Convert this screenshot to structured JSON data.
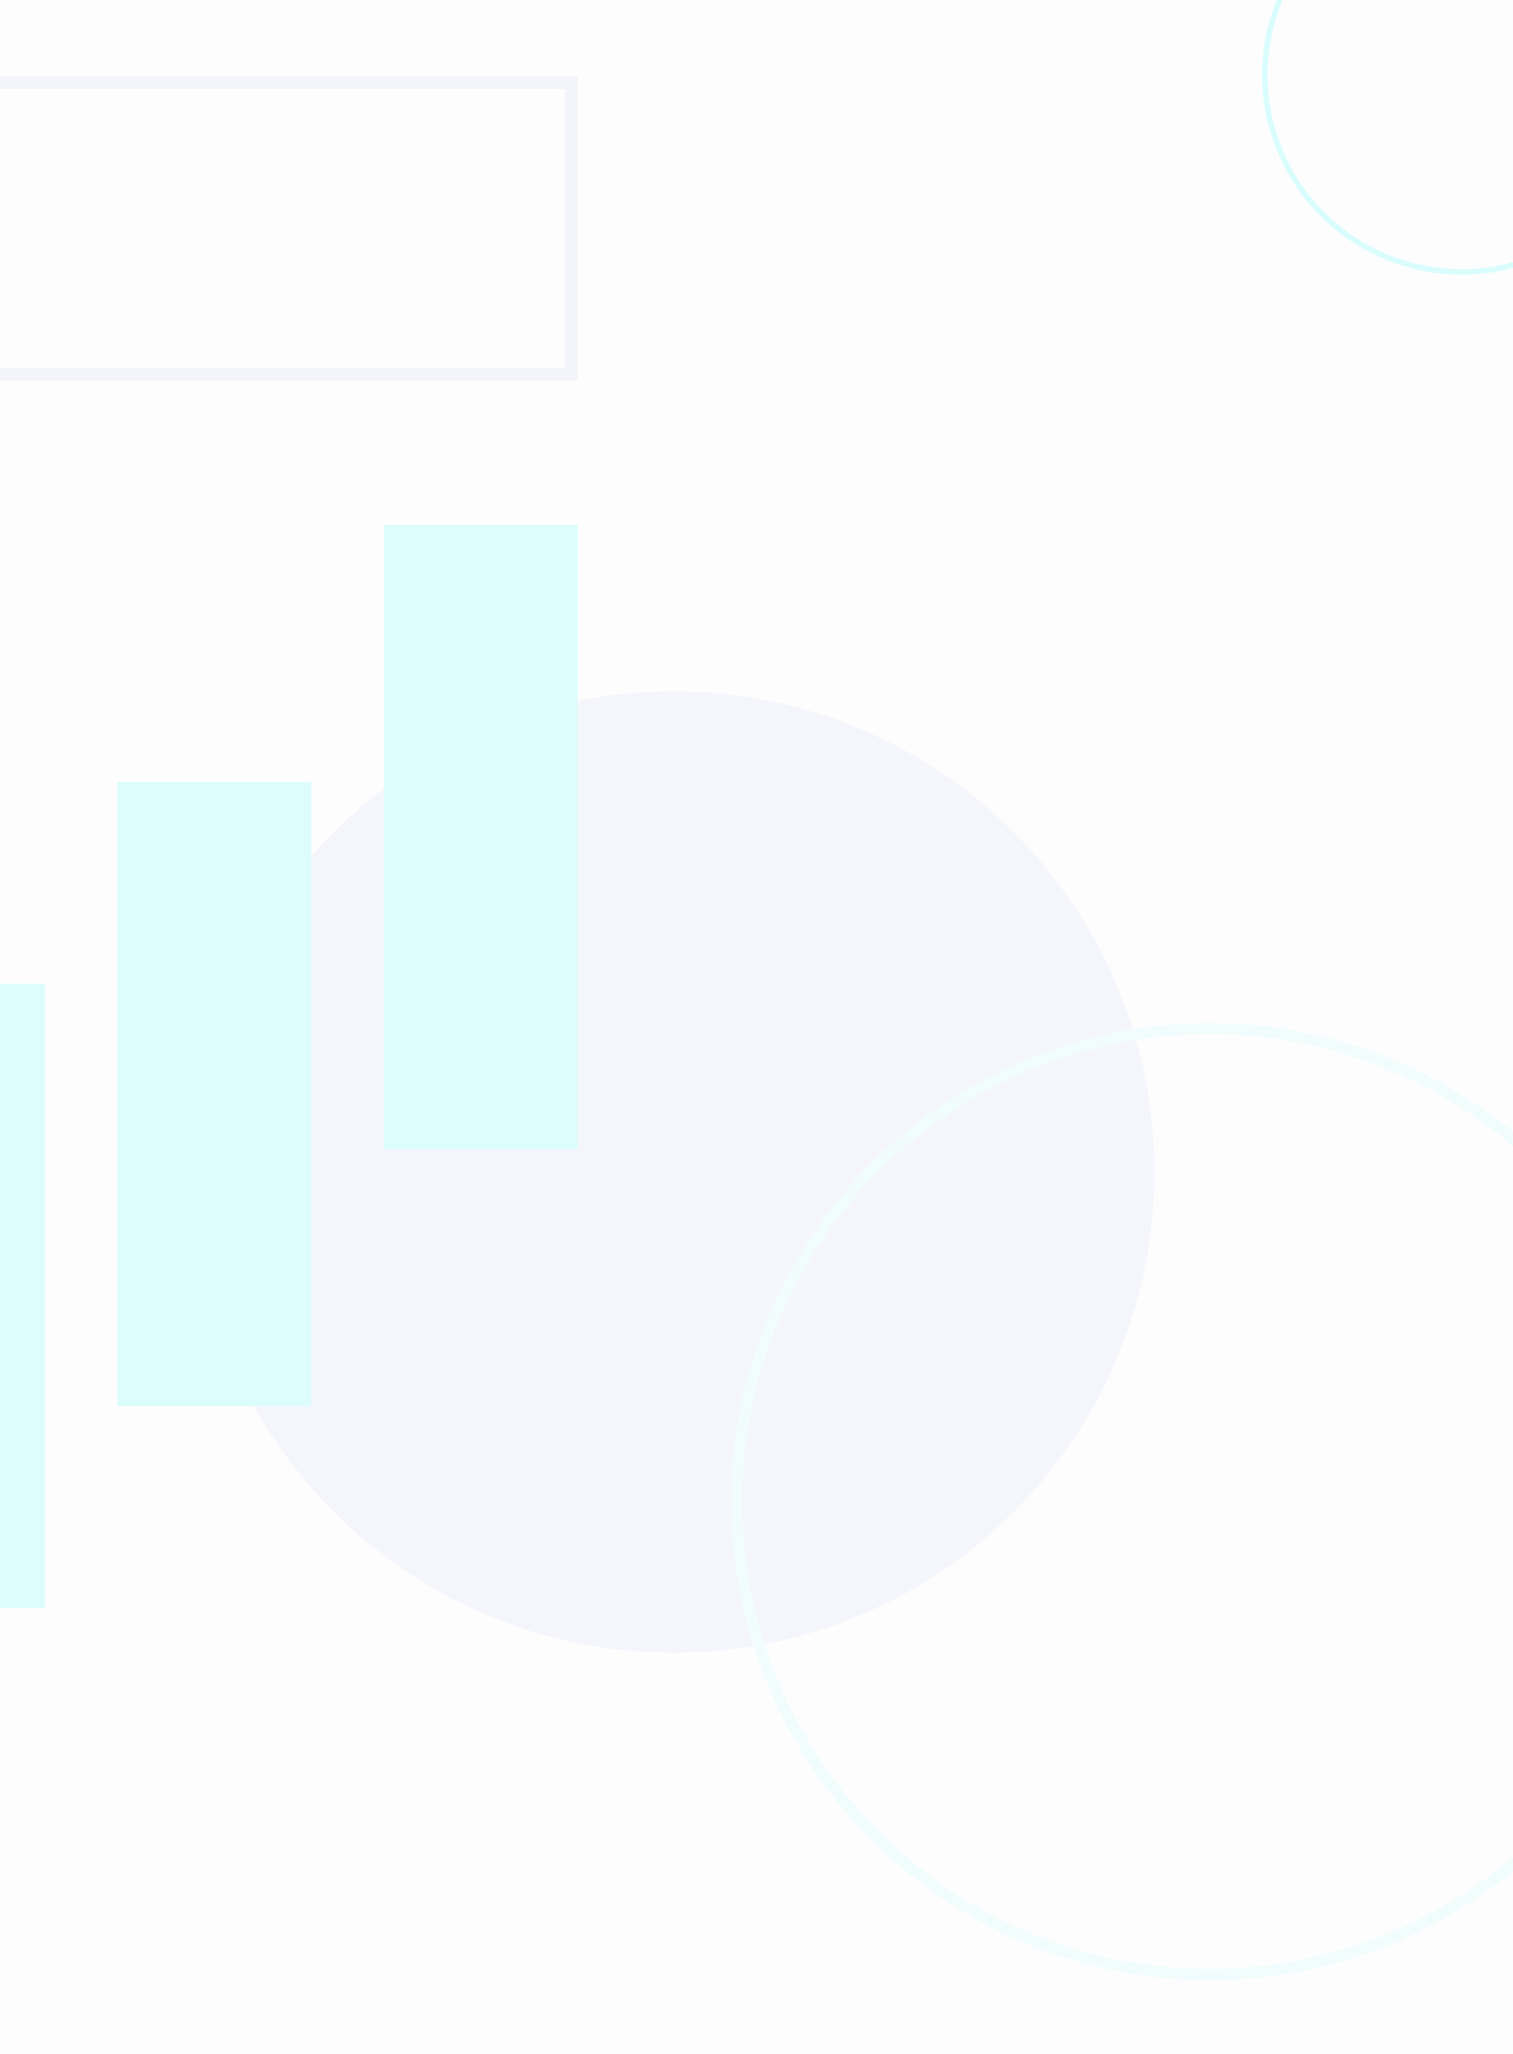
{
  "background_color": "#fdfdfe",
  "colors": {
    "lavender": "#f5f6fc",
    "lavender_stroke": "#f4f5fb",
    "aqua_fill": "#dcfdfc",
    "aqua_stroke": "#d9fdfc",
    "aqua_faint_stroke": "#f0fdfc"
  },
  "shapes": [
    {
      "name": "decorative-rectangle-outline",
      "kind": "rectangle-outline",
      "color_key": "lavender_stroke"
    },
    {
      "name": "decorative-circle-outline-top-right",
      "kind": "circle-outline",
      "color_key": "aqua_stroke"
    },
    {
      "name": "decorative-filled-circle",
      "kind": "filled-circle",
      "color_key": "lavender"
    },
    {
      "name": "decorative-circle-outline-large",
      "kind": "circle-outline",
      "color_key": "aqua_faint_stroke"
    },
    {
      "name": "decorative-bar-left",
      "kind": "filled-bar",
      "color_key": "aqua_fill"
    },
    {
      "name": "decorative-bar-middle",
      "kind": "filled-bar",
      "color_key": "aqua_fill"
    },
    {
      "name": "decorative-bar-right",
      "kind": "filled-bar",
      "color_key": "aqua_fill"
    }
  ]
}
